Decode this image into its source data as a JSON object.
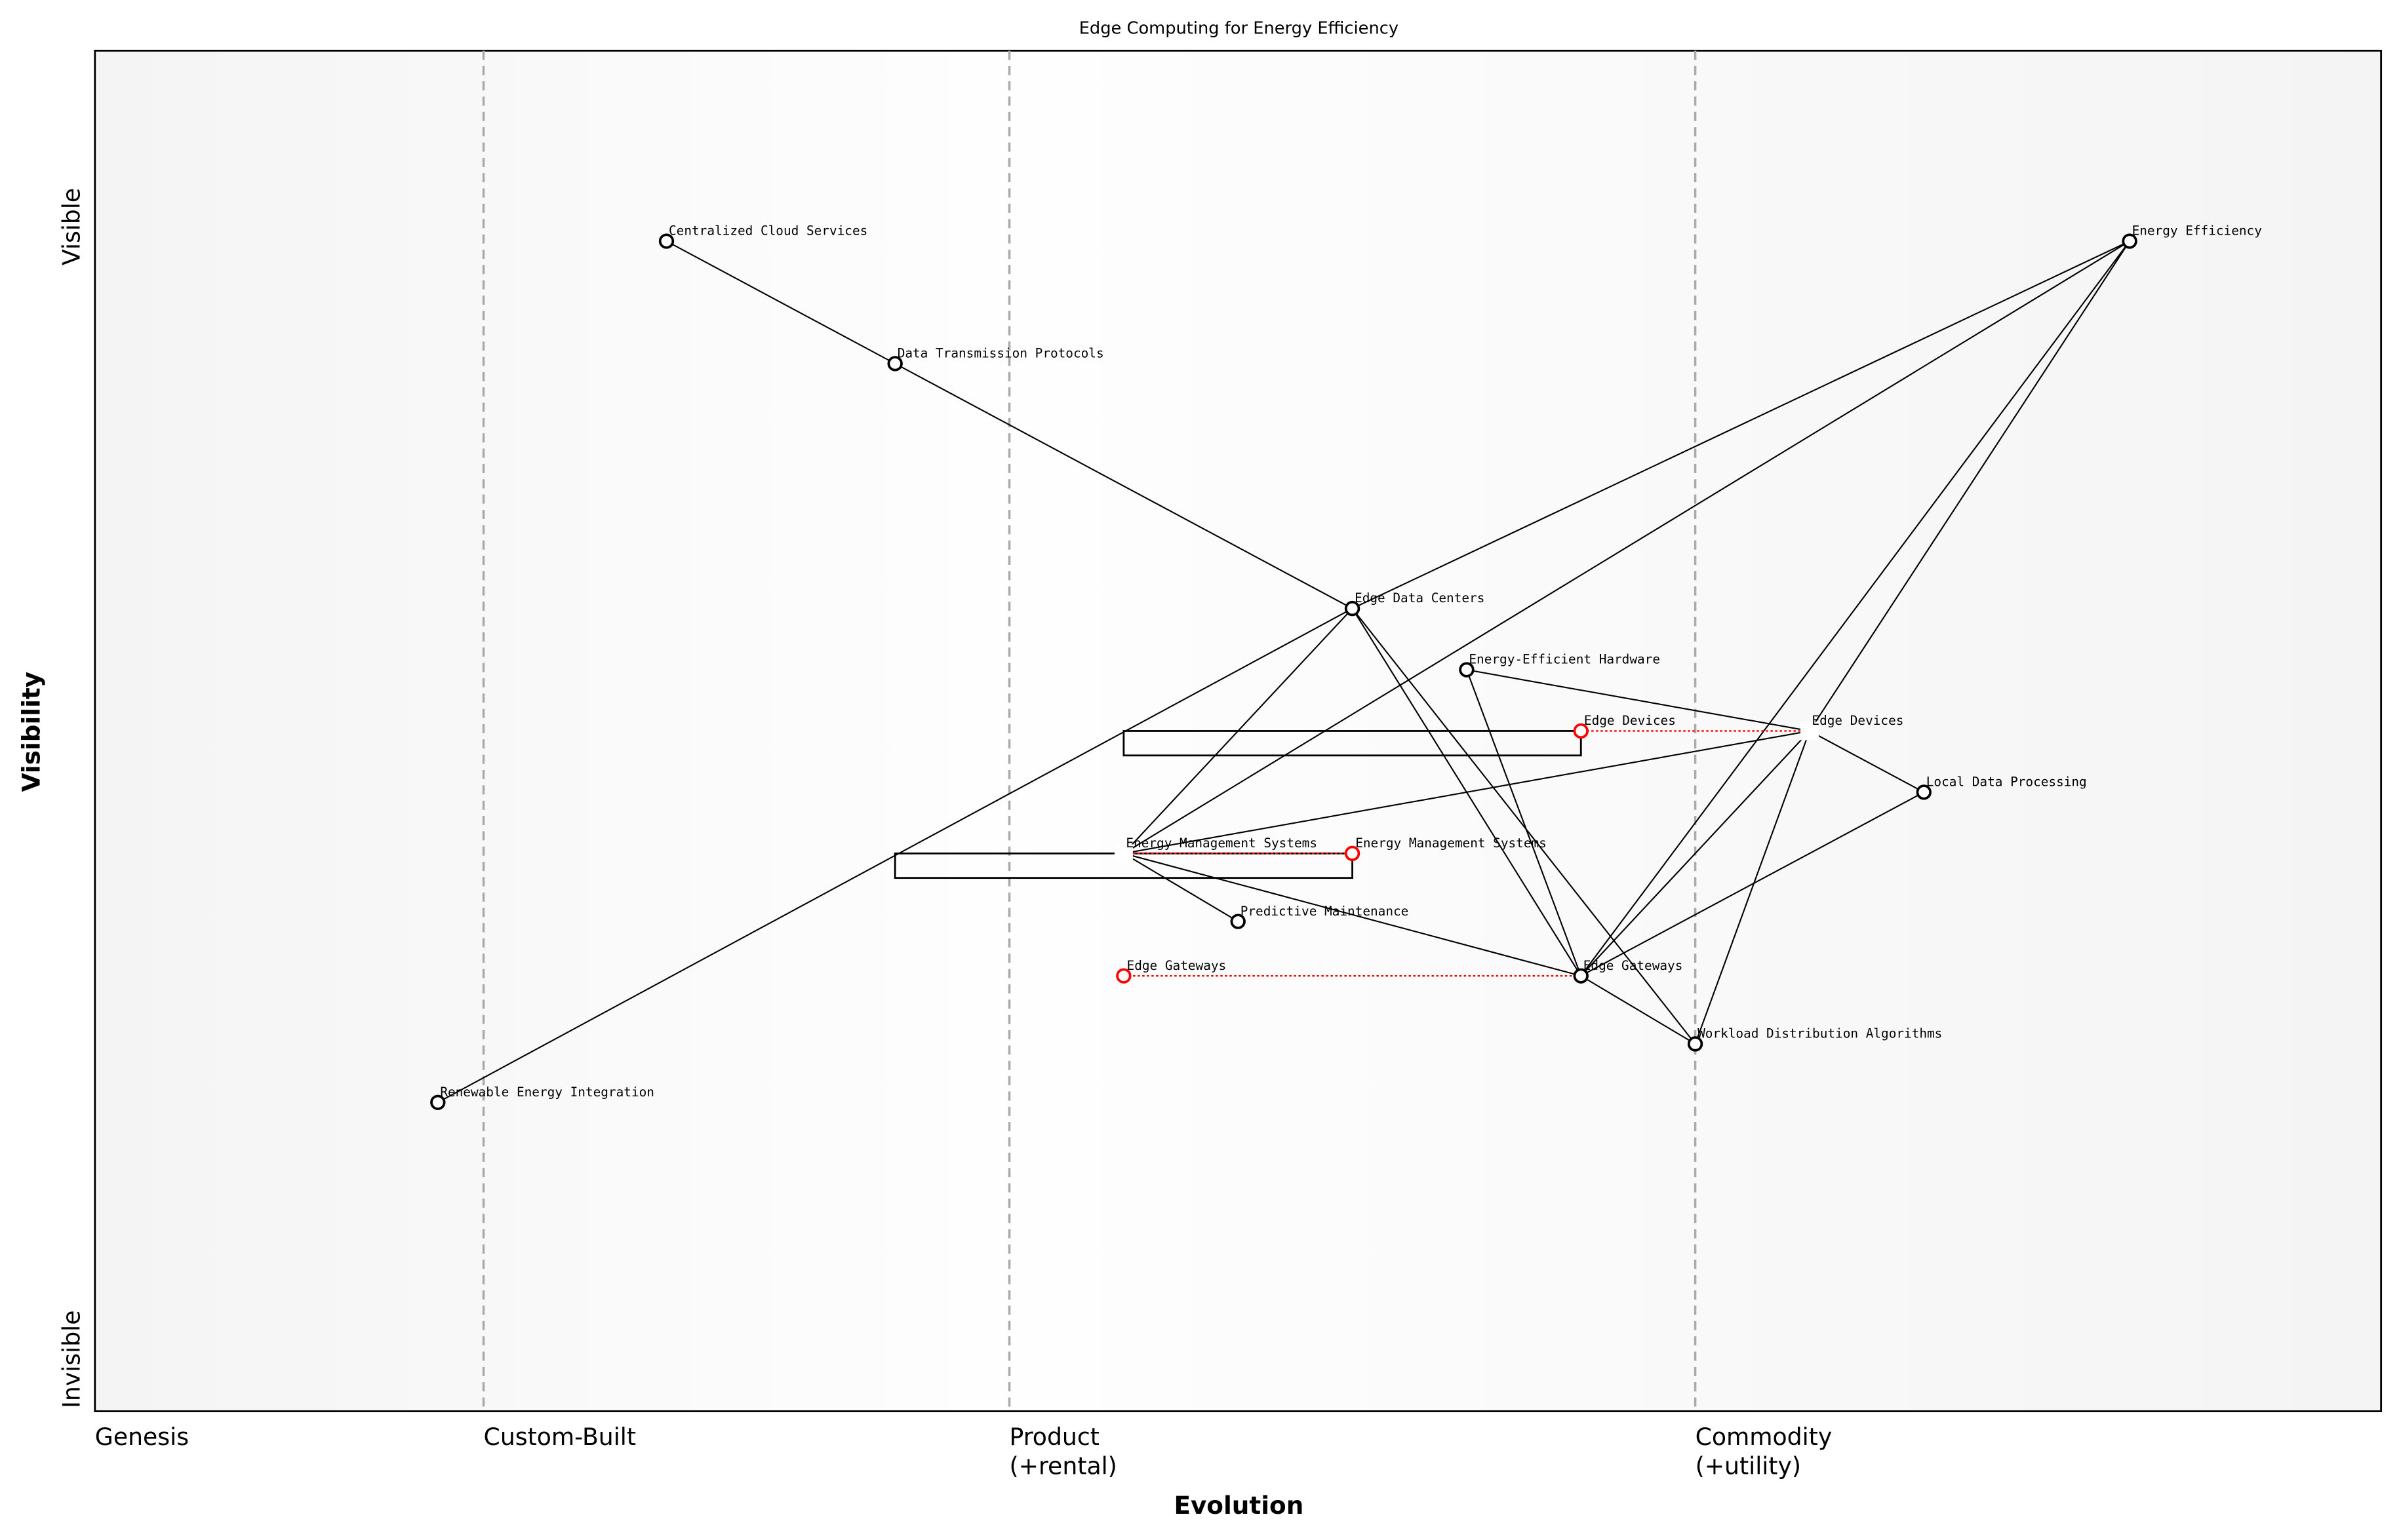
{
  "chart_data": {
    "type": "wardley-map",
    "title": "Edge Computing for Energy Efficiency",
    "xlabel": "Evolution",
    "ylabel": "Visibility",
    "y_ticks": {
      "top": "Visible",
      "bottom": "Invisible"
    },
    "stages": [
      {
        "label": "Genesis",
        "start": 0.0
      },
      {
        "label": "Custom-Built",
        "start": 0.17
      },
      {
        "label": "Product\n(+rental)",
        "start": 0.4
      },
      {
        "label": "Commodity\n(+utility)",
        "start": 0.7
      }
    ],
    "components": [
      {
        "name": "Energy Efficiency",
        "evolution": 0.89,
        "visibility": 0.86
      },
      {
        "name": "Centralized Cloud Services",
        "evolution": 0.25,
        "visibility": 0.86
      },
      {
        "name": "Data Transmission Protocols",
        "evolution": 0.35,
        "visibility": 0.77
      },
      {
        "name": "Edge Data Centers",
        "evolution": 0.55,
        "visibility": 0.59
      },
      {
        "name": "Energy-Efficient Hardware",
        "evolution": 0.6,
        "visibility": 0.545
      },
      {
        "name": "Edge Devices",
        "evolution": 0.75,
        "visibility": 0.5,
        "hidden_marker": true
      },
      {
        "name": "Local Data Processing",
        "evolution": 0.8,
        "visibility": 0.455
      },
      {
        "name": "Energy Management Systems",
        "evolution": 0.45,
        "visibility": 0.41,
        "hidden_marker": true
      },
      {
        "name": "Predictive Maintenance",
        "evolution": 0.5,
        "visibility": 0.36
      },
      {
        "name": "Edge Gateways",
        "evolution": 0.65,
        "visibility": 0.32
      },
      {
        "name": "Workload Distribution Algorithms",
        "evolution": 0.7,
        "visibility": 0.27
      },
      {
        "name": "Renewable Energy Integration",
        "evolution": 0.15,
        "visibility": 0.227
      }
    ],
    "evolved": [
      {
        "name": "Edge Devices",
        "from": 0.75,
        "to": 0.65,
        "visibility": 0.5
      },
      {
        "name": "Energy Management Systems",
        "from": 0.45,
        "to": 0.55,
        "visibility": 0.41
      },
      {
        "name": "Edge Gateways",
        "from": 0.65,
        "to": 0.45,
        "visibility": 0.32
      }
    ],
    "pipelines": [
      {
        "visibility": 0.5,
        "start": 0.45,
        "end": 0.65
      },
      {
        "visibility": 0.41,
        "start": 0.35,
        "end": 0.55
      }
    ],
    "links": [
      [
        "Centralized Cloud Services",
        "Data Transmission Protocols"
      ],
      [
        "Data Transmission Protocols",
        "Edge Data Centers"
      ],
      [
        "Energy Efficiency",
        "Edge Data Centers"
      ],
      [
        "Energy Efficiency",
        "Energy Management Systems"
      ],
      [
        "Energy Efficiency",
        "Edge Devices"
      ],
      [
        "Energy Efficiency",
        "Edge Gateways"
      ],
      [
        "Edge Data Centers",
        "Renewable Energy Integration"
      ],
      [
        "Edge Data Centers",
        "Energy Management Systems"
      ],
      [
        "Edge Data Centers",
        "Edge Gateways"
      ],
      [
        "Edge Data Centers",
        "Workload Distribution Algorithms"
      ],
      [
        "Energy-Efficient Hardware",
        "Edge Devices"
      ],
      [
        "Energy-Efficient Hardware",
        "Edge Gateways"
      ],
      [
        "Edge Devices",
        "Local Data Processing"
      ],
      [
        "Edge Devices",
        "Energy Management Systems"
      ],
      [
        "Edge Devices",
        "Edge Gateways"
      ],
      [
        "Edge Devices",
        "Workload Distribution Algorithms"
      ],
      [
        "Local Data Processing",
        "Edge Gateways"
      ],
      [
        "Energy Management Systems",
        "Predictive Maintenance"
      ],
      [
        "Energy Management Systems",
        "Edge Gateways"
      ],
      [
        "Edge Gateways",
        "Workload Distribution Algorithms"
      ]
    ],
    "colors": {
      "evolved": "#ff0000",
      "stage_line": "#aaaaaa",
      "background": "#f5f5f5"
    }
  }
}
